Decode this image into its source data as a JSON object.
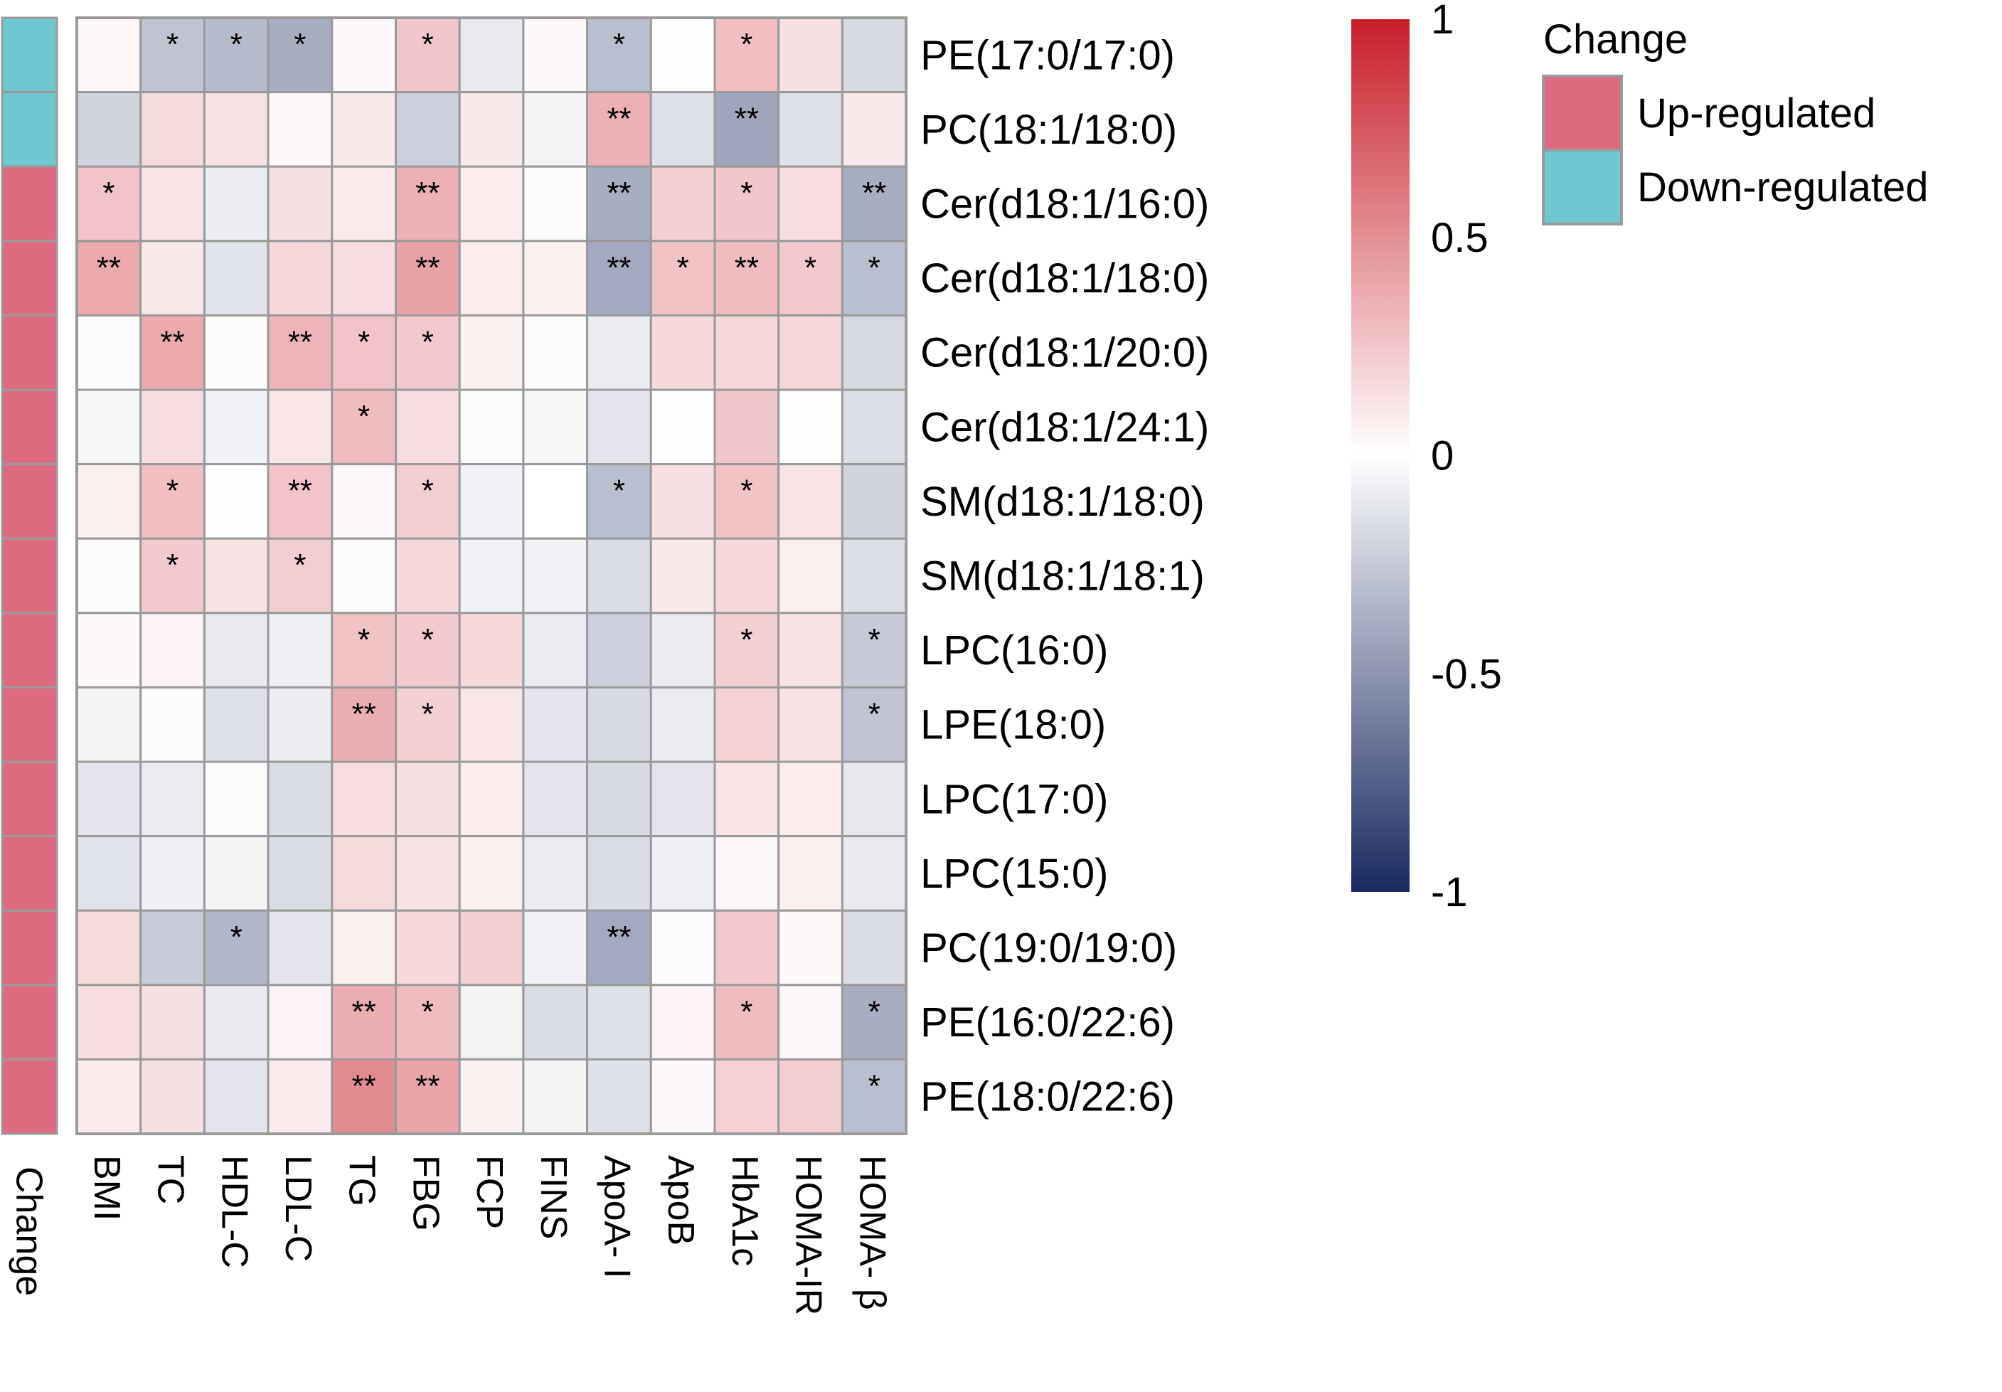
{
  "chart_data": {
    "type": "heatmap",
    "title": "",
    "rows": [
      "PE(17:0/17:0)",
      "PC(18:1/18:0)",
      "Cer(d18:1/16:0)",
      "Cer(d18:1/18:0)",
      "Cer(d18:1/20:0)",
      "Cer(d18:1/24:1)",
      "SM(d18:1/18:0)",
      "SM(d18:1/18:1)",
      "LPC(16:0)",
      "LPE(18:0)",
      "LPC(17:0)",
      "LPC(15:0)",
      "PC(19:0/19:0)",
      "PE(16:0/22:6)",
      "PE(18:0/22:6)"
    ],
    "columns": [
      "BMI",
      "TC",
      "HDL-C",
      "LDL-C",
      "TG",
      "FBG",
      "FCP",
      "FINS",
      "ApoA- I",
      "ApoB",
      "HbA1c",
      "HOMA-IR",
      "HOMA- β"
    ],
    "values": [
      [
        0.04,
        -0.28,
        -0.32,
        -0.38,
        0.03,
        0.25,
        -0.1,
        0.03,
        -0.3,
        0.01,
        0.28,
        0.14,
        -0.17
      ],
      [
        -0.2,
        0.16,
        0.13,
        0.03,
        0.1,
        -0.22,
        0.1,
        -0.05,
        0.35,
        -0.14,
        -0.42,
        -0.14,
        0.1
      ],
      [
        0.26,
        0.12,
        -0.08,
        0.14,
        0.09,
        0.35,
        0.08,
        0.02,
        -0.38,
        0.21,
        0.25,
        0.15,
        -0.38
      ],
      [
        0.38,
        0.1,
        -0.13,
        0.17,
        0.15,
        0.42,
        0.08,
        0.07,
        -0.4,
        0.27,
        0.3,
        0.24,
        -0.3
      ],
      [
        0.02,
        0.38,
        0.02,
        0.33,
        0.26,
        0.24,
        0.06,
        0.02,
        -0.09,
        0.17,
        0.17,
        0.18,
        -0.18
      ],
      [
        -0.04,
        0.15,
        -0.06,
        0.11,
        0.3,
        0.15,
        0.02,
        -0.04,
        -0.12,
        0.01,
        0.25,
        0.01,
        -0.15
      ],
      [
        0.07,
        0.28,
        0.01,
        0.26,
        0.04,
        0.22,
        -0.06,
        0.0,
        -0.3,
        0.14,
        0.27,
        0.12,
        -0.2
      ],
      [
        0.02,
        0.24,
        0.13,
        0.22,
        0.02,
        0.17,
        -0.06,
        -0.06,
        -0.16,
        0.1,
        0.17,
        0.07,
        -0.15
      ],
      [
        0.03,
        0.05,
        -0.1,
        -0.07,
        0.27,
        0.24,
        0.17,
        -0.09,
        -0.22,
        -0.09,
        0.21,
        0.13,
        -0.25
      ],
      [
        -0.05,
        0.02,
        -0.14,
        -0.08,
        0.36,
        0.21,
        0.11,
        -0.12,
        -0.17,
        -0.09,
        0.2,
        0.13,
        -0.28
      ],
      [
        -0.12,
        -0.09,
        -0.02,
        -0.16,
        0.15,
        0.14,
        0.08,
        -0.12,
        -0.17,
        -0.12,
        0.12,
        0.08,
        -0.11
      ],
      [
        -0.13,
        -0.07,
        -0.05,
        -0.16,
        0.16,
        0.13,
        0.07,
        -0.09,
        -0.16,
        -0.07,
        0.04,
        0.07,
        -0.1
      ],
      [
        0.16,
        -0.24,
        -0.34,
        -0.12,
        0.07,
        0.17,
        0.21,
        -0.06,
        -0.4,
        0.02,
        0.24,
        0.03,
        -0.16
      ],
      [
        0.15,
        0.14,
        -0.1,
        0.05,
        0.36,
        0.3,
        -0.05,
        -0.16,
        -0.14,
        0.05,
        0.3,
        0.04,
        -0.38
      ],
      [
        0.09,
        0.14,
        -0.12,
        0.09,
        0.52,
        0.4,
        0.06,
        -0.05,
        -0.14,
        0.03,
        0.2,
        0.22,
        -0.3
      ]
    ],
    "significance": [
      [
        "",
        "*",
        "*",
        "*",
        "",
        "*",
        "",
        "",
        "*",
        "",
        "*",
        "",
        ""
      ],
      [
        "",
        "",
        "",
        "",
        "",
        "",
        "",
        "",
        "**",
        "",
        "**",
        "",
        ""
      ],
      [
        "*",
        "",
        "",
        "",
        "",
        "**",
        "",
        "",
        "**",
        "",
        "*",
        "",
        "**"
      ],
      [
        "**",
        "",
        "",
        "",
        "",
        "**",
        "",
        "",
        "**",
        "*",
        "**",
        "*",
        "*"
      ],
      [
        "",
        "**",
        "",
        "**",
        "*",
        "*",
        "",
        "",
        "",
        "",
        "",
        "",
        ""
      ],
      [
        "",
        "",
        "",
        "",
        "*",
        "",
        "",
        "",
        "",
        "",
        "",
        "",
        ""
      ],
      [
        "",
        "*",
        "",
        "**",
        "",
        "*",
        "",
        "",
        "*",
        "",
        "*",
        "",
        ""
      ],
      [
        "",
        "*",
        "",
        "*",
        "",
        "",
        "",
        "",
        "",
        "",
        "",
        "",
        ""
      ],
      [
        "",
        "",
        "",
        "",
        "*",
        "*",
        "",
        "",
        "",
        "",
        "*",
        "",
        "*"
      ],
      [
        "",
        "",
        "",
        "",
        "**",
        "*",
        "",
        "",
        "",
        "",
        "",
        "",
        "*"
      ],
      [
        "",
        "",
        "",
        "",
        "",
        "",
        "",
        "",
        "",
        "",
        "",
        "",
        ""
      ],
      [
        "",
        "",
        "",
        "",
        "",
        "",
        "",
        "",
        "",
        "",
        "",
        "",
        ""
      ],
      [
        "",
        "",
        "*",
        "",
        "",
        "",
        "",
        "",
        "**",
        "",
        "",
        "",
        ""
      ],
      [
        "",
        "",
        "",
        "",
        "**",
        "*",
        "",
        "",
        "",
        "",
        "*",
        "",
        "*"
      ],
      [
        "",
        "",
        "",
        "",
        "**",
        "**",
        "",
        "",
        "",
        "",
        "",
        "",
        "*"
      ]
    ],
    "change": [
      "Down-regulated",
      "Down-regulated",
      "Up-regulated",
      "Up-regulated",
      "Up-regulated",
      "Up-regulated",
      "Up-regulated",
      "Up-regulated",
      "Up-regulated",
      "Up-regulated",
      "Up-regulated",
      "Up-regulated",
      "Up-regulated",
      "Up-regulated",
      "Up-regulated"
    ],
    "change_label": "Change",
    "range": [
      -1,
      1
    ],
    "colorbar_ticks": [
      {
        "value": 1,
        "label": "1"
      },
      {
        "value": 0.5,
        "label": "0.5"
      },
      {
        "value": 0,
        "label": "0"
      },
      {
        "value": -0.5,
        "label": "-0.5"
      },
      {
        "value": -1,
        "label": "-1"
      }
    ],
    "colors": {
      "high": "#c81f2a",
      "mid": "#ffffff",
      "low": "#1a2a5e",
      "up": "#de6a80",
      "down": "#6fc8cf",
      "grid": "#9a9a9a"
    },
    "legend": {
      "title": "Change",
      "position": "top-right",
      "items": [
        {
          "label": "Up-regulated",
          "color": "#de6a80"
        },
        {
          "label": "Down-regulated",
          "color": "#6fc8cf"
        }
      ]
    }
  }
}
